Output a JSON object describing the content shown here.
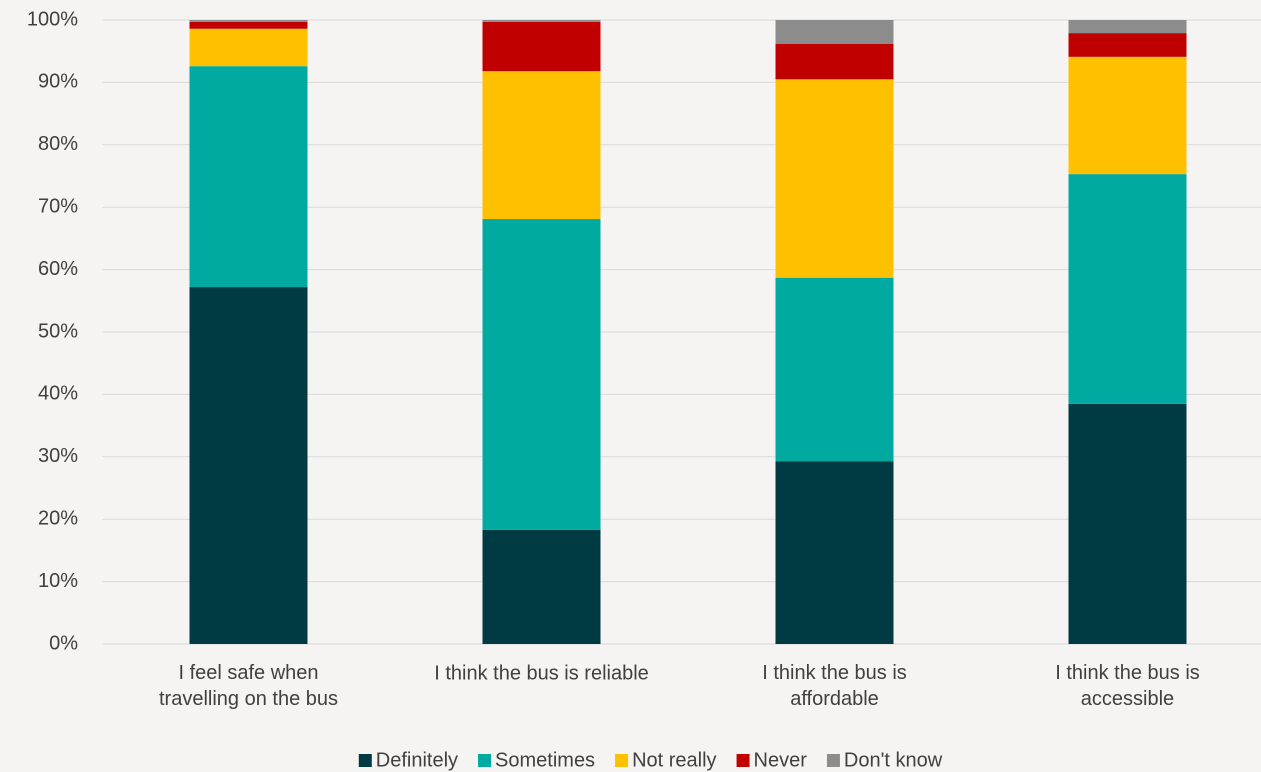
{
  "chart_data": {
    "type": "stacked_bar",
    "categories": [
      "I feel safe when\ntravelling on the bus",
      "I think the bus is reliable",
      "I think the bus is\naffordable",
      "I think the bus is\naccessible"
    ],
    "series": [
      {
        "name": "Definitely",
        "color": "#003b44",
        "values": [
          57.2,
          18.3,
          29.3,
          38.5
        ]
      },
      {
        "name": "Sometimes",
        "color": "#00aaa0",
        "values": [
          35.4,
          49.8,
          29.4,
          36.8
        ]
      },
      {
        "name": "Not really",
        "color": "#ffc000",
        "values": [
          6.0,
          23.7,
          31.8,
          18.8
        ]
      },
      {
        "name": "Never",
        "color": "#c00000",
        "values": [
          1.1,
          7.9,
          5.7,
          3.8
        ]
      },
      {
        "name": "Don't know",
        "color": "#8c8c8c",
        "values": [
          0.3,
          0.3,
          3.8,
          2.1
        ]
      }
    ],
    "ylim": [
      0,
      100
    ],
    "yticks": [
      {
        "value": 0,
        "label": "0%"
      },
      {
        "value": 10,
        "label": "10%"
      },
      {
        "value": 20,
        "label": "20%"
      },
      {
        "value": 30,
        "label": "30%"
      },
      {
        "value": 40,
        "label": "40%"
      },
      {
        "value": 50,
        "label": "50%"
      },
      {
        "value": 60,
        "label": "60%"
      },
      {
        "value": 70,
        "label": "70%"
      },
      {
        "value": 80,
        "label": "80%"
      },
      {
        "value": 90,
        "label": "90%"
      },
      {
        "value": 100,
        "label": "100%"
      }
    ],
    "grid": true,
    "legend": "bottom"
  }
}
